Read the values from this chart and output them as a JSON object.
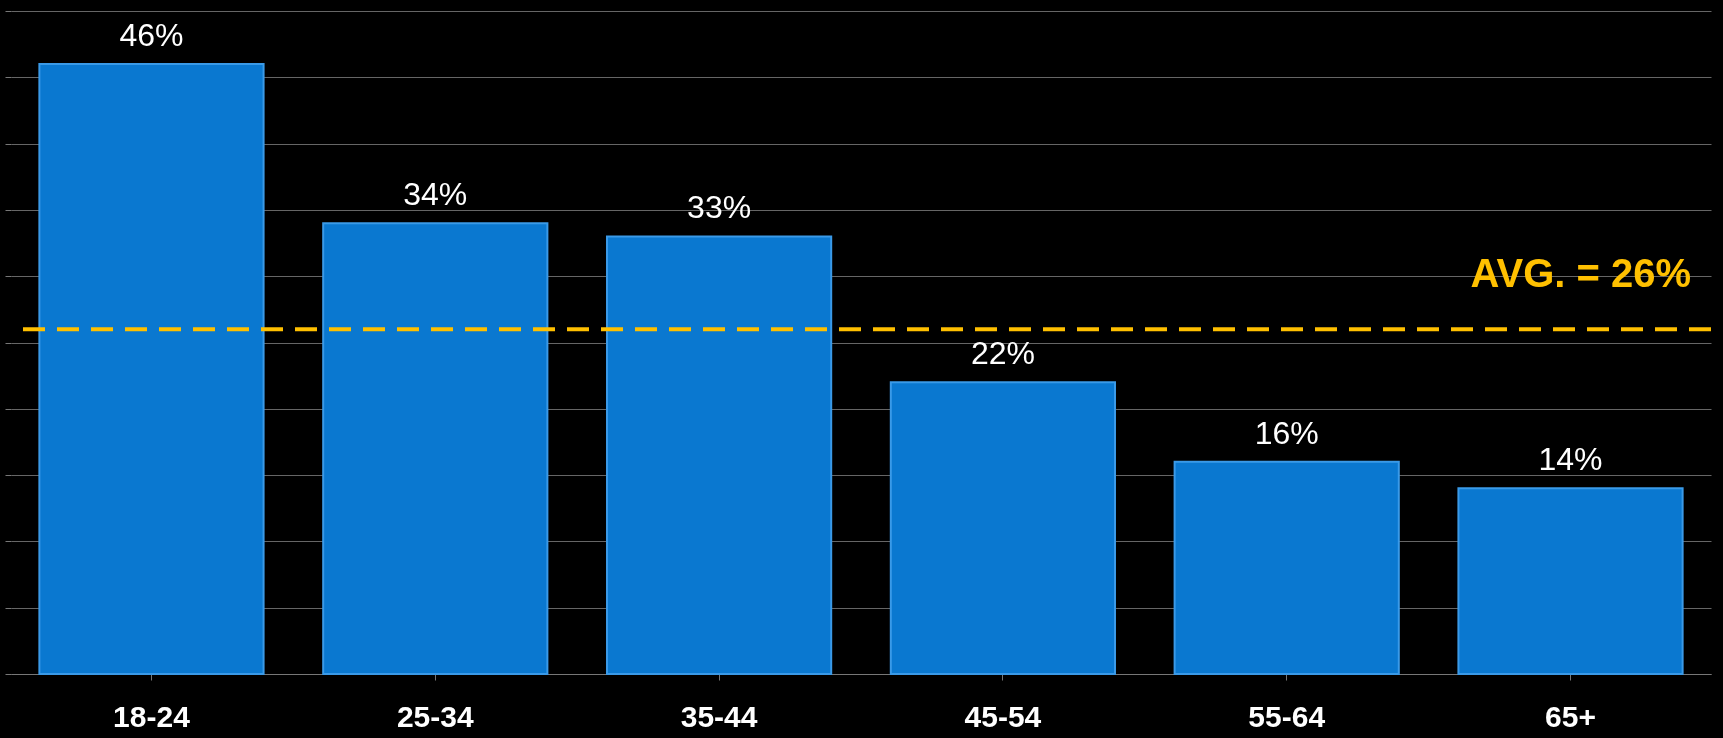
{
  "chart_data": {
    "type": "bar",
    "categories": [
      "18-24",
      "25-34",
      "35-44",
      "45-54",
      "55-64",
      "65+"
    ],
    "values": [
      46,
      34,
      33,
      22,
      16,
      14
    ],
    "value_labels": [
      "46%",
      "34%",
      "33%",
      "22%",
      "16%",
      "14%"
    ],
    "color": "#0a78d0",
    "ylim": [
      0,
      50
    ],
    "yticks": [
      0,
      5,
      10,
      15,
      20,
      25,
      30,
      35,
      40,
      45,
      50
    ],
    "tick_labels": "x",
    "grid": "y",
    "ref_lines": [
      {
        "axis": "y",
        "value": 26,
        "label": "AVG. = 26%",
        "color": "#ffc000",
        "line_style": "dashed"
      }
    ]
  }
}
